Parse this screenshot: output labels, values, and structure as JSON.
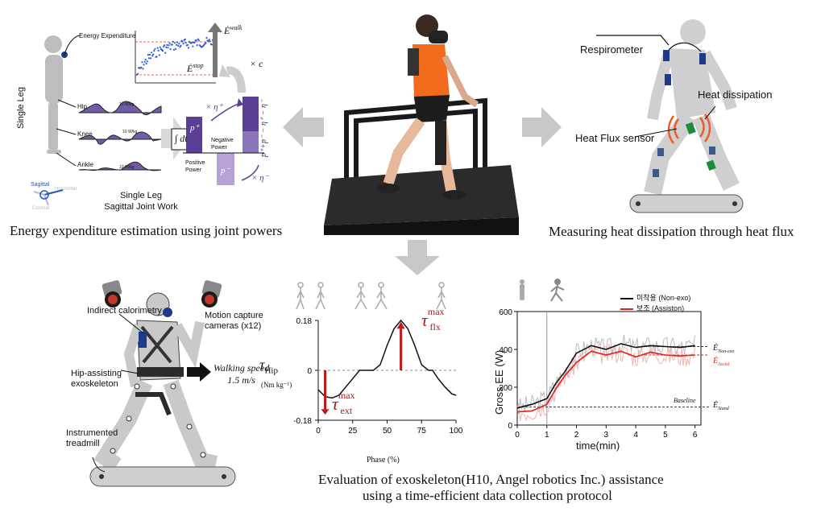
{
  "panel_a": {
    "energy_label": "Energy Expenditure",
    "e_walk": "Ė",
    "e_walk_sup": "walk",
    "e_stop": "Ė",
    "e_stop_sup": "stop",
    "times_c": "× c",
    "single_leg_vertical": "Single Leg",
    "joint_labels": [
      "Hip",
      "Knee",
      "Ankle"
    ],
    "scale_labels": [
      "10 W/kg",
      "10 W/kg",
      "10 W/kg"
    ],
    "integral": "∫ dt",
    "p_plus": "p⁺",
    "p_minus": "p⁻",
    "times_eta_plus": "× η⁺",
    "times_eta_minus": "× η⁻",
    "negative_power": "Negative Power",
    "positive_power": "Positive Power",
    "formula_vertical": "p⁺+p⁻ − η⁺ − η⁻",
    "axis_sagittal": "Sagittal",
    "axis_horizontal": "Horizontal",
    "axis_coronal": "Coronal",
    "title_line1": "Single Leg",
    "title_line2": "Sagittal Joint Work",
    "caption": "Energy expenditure estimation using joint powers"
  },
  "panel_b": {
    "respirometer": "Respirometer",
    "heat_dissipation": "Heat dissipation",
    "heat_flux_sensor": "Heat Flux sensor",
    "caption": "Measuring heat dissipation through heat flux"
  },
  "panel_c": {
    "indirect_calorimetry": "Indirect calorimetry",
    "motion_capture": "Motion capture cameras (x12)",
    "walking_speed_line1": "Walking speed",
    "walking_speed_line2": "1.5 m/s",
    "exoskeleton": "Hip-assisting exoskeleton",
    "treadmill": "Instrumented treadmill"
  },
  "torque_plot": {
    "ylabel_main": "τ",
    "ylabel_sub": "Hip",
    "ylabel_unit": "(Nm kg⁻¹)",
    "xlabel": "Phase (%)",
    "yticks": [
      "0.18",
      "0",
      "-0.18"
    ],
    "xticks": [
      "0",
      "25",
      "50",
      "75",
      "100"
    ],
    "tau_ext": "τ",
    "tau_ext_sup": "max",
    "tau_ext_sub": "ext",
    "tau_flx": "τ",
    "tau_flx_sup": "max",
    "tau_flx_sub": "flx"
  },
  "ee_plot": {
    "ylabel": "Gross EE (W)",
    "xlabel": "time(min)",
    "yticks": [
      "0",
      "200",
      "400",
      "600"
    ],
    "xticks": [
      "0",
      "1",
      "2",
      "3",
      "4",
      "5",
      "6"
    ],
    "legend": [
      "미착용 (Non-exo)",
      "보조 (Assiston)"
    ],
    "baseline_label": "Baseline",
    "e_non_exo": "Ė",
    "e_non_exo_sub": "Non-exo",
    "e_assist": "Ė",
    "e_assist_sub": "Assist",
    "e_stand": "Ė",
    "e_stand_sub": "Stand",
    "colors": {
      "non_exo": "#111111",
      "assist": "#e0201a",
      "raw_non_exo": "#bbbbbb",
      "raw_assist": "#f3b4b0"
    }
  },
  "chart_data": [
    {
      "type": "line",
      "title": "",
      "xlabel": "Phase (%)",
      "ylabel": "τHip (Nm kg⁻¹)",
      "xlim": [
        0,
        100
      ],
      "ylim": [
        -0.18,
        0.18
      ],
      "series": [
        {
          "name": "",
          "x": [
            0,
            5,
            10,
            15,
            20,
            25,
            30,
            35,
            40,
            45,
            50,
            55,
            60,
            65,
            70,
            75,
            80,
            83,
            87,
            92,
            97,
            100
          ],
          "values": [
            -0.07,
            -0.095,
            -0.1,
            -0.09,
            -0.06,
            -0.03,
            0,
            0,
            0,
            0.02,
            0.09,
            0.15,
            0.18,
            0.15,
            0.09,
            0.02,
            0,
            0,
            -0.03,
            -0.06,
            -0.085,
            -0.09
          ]
        }
      ]
    },
    {
      "type": "line",
      "title": "",
      "xlabel": "time(min)",
      "ylabel": "Gross EE (W)",
      "xlim": [
        0,
        6.2
      ],
      "ylim": [
        0,
        600
      ],
      "series": [
        {
          "name": "미착용 (Non-exo)",
          "x": [
            0,
            0.5,
            1,
            1.3,
            1.6,
            2,
            2.5,
            3,
            3.5,
            4,
            4.5,
            5,
            5.5,
            6
          ],
          "values": [
            90,
            110,
            140,
            220,
            280,
            380,
            420,
            400,
            430,
            410,
            420,
            415,
            410,
            420
          ]
        },
        {
          "name": "보조 (Assiston)",
          "x": [
            0,
            0.5,
            1,
            1.3,
            1.6,
            2,
            2.5,
            3,
            3.5,
            4,
            4.5,
            5,
            5.5,
            6
          ],
          "values": [
            70,
            75,
            110,
            190,
            260,
            330,
            390,
            370,
            390,
            360,
            385,
            370,
            365,
            370
          ]
        }
      ]
    }
  ],
  "bottom_caption_line1": "Evaluation of exoskeleton(H10, Angel robotics Inc.) assistance",
  "bottom_caption_line2": "using a time-efficient data collection protocol"
}
